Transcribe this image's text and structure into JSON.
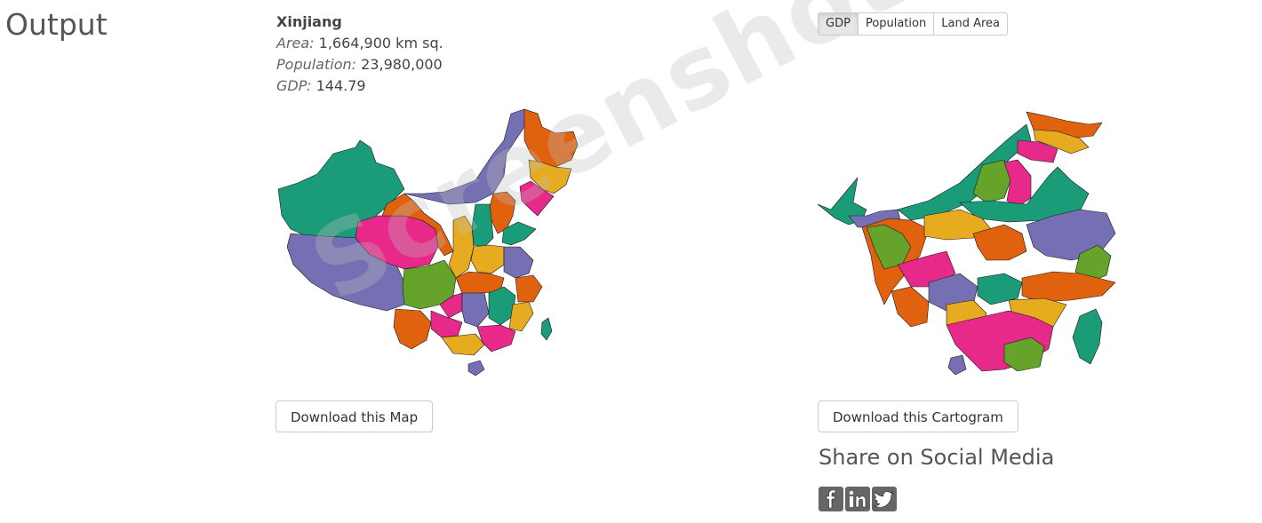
{
  "heading": "Output",
  "region": {
    "name": "Xinjiang",
    "area_label": "Area:",
    "area_value": "1,664,900 km sq.",
    "population_label": "Population:",
    "population_value": "23,980,000",
    "gdp_label": "GDP:",
    "gdp_value": "144.79"
  },
  "toggle": {
    "options": [
      "GDP",
      "Population",
      "Land Area"
    ],
    "selected": "GDP"
  },
  "buttons": {
    "download_map": "Download this Map",
    "download_cartogram": "Download this Cartogram"
  },
  "share": {
    "title": "Share on Social Media",
    "icons": [
      "facebook-icon",
      "linkedin-icon",
      "twitter-icon"
    ]
  },
  "watermark": "Screenshot",
  "palette": {
    "green": "#1a9c78",
    "orange": "#e0610e",
    "purple": "#7570b3",
    "pink": "#e7298a",
    "lime": "#66a32a",
    "gold": "#e6ab1e"
  }
}
